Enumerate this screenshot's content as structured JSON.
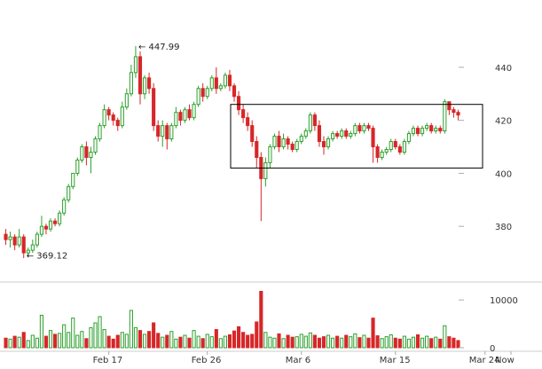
{
  "chart_data": {
    "type": "candlestick",
    "title": "",
    "price_axis": {
      "ticks": [
        380,
        400,
        420,
        440
      ],
      "tick_labels": [
        "380",
        "400",
        "420",
        "440"
      ],
      "ylim": [
        365,
        452
      ]
    },
    "volume_axis": {
      "ticks": [
        0,
        10000
      ],
      "tick_labels": [
        "0",
        "10000"
      ],
      "ylim": [
        0,
        13000
      ]
    },
    "x_labels": [
      "Feb 17",
      "Feb 26",
      "Mar 6",
      "Mar 15",
      "Mar 24",
      "Now"
    ],
    "annotations": {
      "high_label": "← 447.99",
      "low_label": "← 369.12",
      "high_value": 447.99,
      "low_value": 369.12
    },
    "highlight_box": {
      "price_range": [
        402,
        426
      ]
    },
    "colors": {
      "up": "#2ca02c",
      "down": "#d62728",
      "axis": "#cccccc",
      "box": "#000000"
    },
    "candles": [
      [
        377,
        375,
        379,
        373,
        2000
      ],
      [
        375,
        376,
        378,
        372,
        1800
      ],
      [
        376,
        373,
        377,
        371,
        2400
      ],
      [
        373,
        376,
        379,
        372,
        2200
      ],
      [
        376,
        370,
        377,
        368,
        3200
      ],
      [
        370,
        371,
        372,
        369,
        1500
      ],
      [
        371,
        373,
        375,
        370,
        2600
      ],
      [
        373,
        377,
        378,
        372,
        2000
      ],
      [
        377,
        380,
        384,
        376,
        6800
      ],
      [
        380,
        379,
        381,
        377,
        2400
      ],
      [
        379,
        382,
        383,
        378,
        3600
      ],
      [
        382,
        381,
        383,
        380,
        2800
      ],
      [
        381,
        385,
        386,
        380,
        3000
      ],
      [
        385,
        390,
        391,
        384,
        4800
      ],
      [
        390,
        395,
        396,
        389,
        3200
      ],
      [
        395,
        400,
        398,
        394,
        6200
      ],
      [
        400,
        405,
        406,
        399,
        2600
      ],
      [
        405,
        410,
        411,
        404,
        3400
      ],
      [
        410,
        406,
        412,
        403,
        1900
      ],
      [
        406,
        408,
        410,
        400,
        4200
      ],
      [
        408,
        413,
        414,
        407,
        5200
      ],
      [
        413,
        418,
        419,
        412,
        6500
      ],
      [
        418,
        424,
        426,
        417,
        3800
      ],
      [
        424,
        422,
        425,
        420,
        2400
      ],
      [
        422,
        420,
        423,
        418,
        1800
      ],
      [
        420,
        418,
        421,
        416,
        2600
      ],
      [
        418,
        425,
        427,
        417,
        3200
      ],
      [
        425,
        430,
        432,
        424,
        2800
      ],
      [
        430,
        438,
        441,
        429,
        7800
      ],
      [
        438,
        444,
        448,
        436,
        4200
      ],
      [
        444,
        430,
        446,
        426,
        3600
      ],
      [
        430,
        436,
        437,
        428,
        2800
      ],
      [
        436,
        432,
        438,
        430,
        3400
      ],
      [
        432,
        418,
        434,
        416,
        5200
      ],
      [
        418,
        414,
        420,
        412,
        3000
      ],
      [
        414,
        418,
        420,
        410,
        2200
      ],
      [
        418,
        413,
        419,
        409,
        2600
      ],
      [
        413,
        418,
        419,
        412,
        3400
      ],
      [
        418,
        423,
        425,
        417,
        1800
      ],
      [
        423,
        420,
        424,
        418,
        2200
      ],
      [
        420,
        424,
        425,
        419,
        2600
      ],
      [
        424,
        421,
        426,
        420,
        2000
      ],
      [
        421,
        426,
        427,
        420,
        3600
      ],
      [
        426,
        432,
        433,
        425,
        2400
      ],
      [
        432,
        429,
        434,
        427,
        1900
      ],
      [
        429,
        432,
        433,
        428,
        2800
      ],
      [
        432,
        436,
        437,
        431,
        2300
      ],
      [
        436,
        432,
        440,
        430,
        3800
      ],
      [
        432,
        433,
        434,
        431,
        1900
      ],
      [
        433,
        437,
        438,
        432,
        2400
      ],
      [
        437,
        433,
        439,
        431,
        2700
      ],
      [
        433,
        429,
        434,
        427,
        3500
      ],
      [
        429,
        424,
        431,
        422,
        4400
      ],
      [
        424,
        421,
        426,
        419,
        3200
      ],
      [
        421,
        418,
        423,
        416,
        2600
      ],
      [
        418,
        412,
        420,
        410,
        2800
      ],
      [
        412,
        406,
        414,
        402,
        5400
      ],
      [
        406,
        398,
        408,
        382,
        11800
      ],
      [
        398,
        404,
        406,
        395,
        3200
      ],
      [
        404,
        410,
        411,
        402,
        2200
      ],
      [
        410,
        414,
        415,
        409,
        2000
      ],
      [
        414,
        410,
        416,
        408,
        2900
      ],
      [
        410,
        413,
        415,
        409,
        1900
      ],
      [
        413,
        411,
        414,
        409,
        2600
      ],
      [
        411,
        409,
        412,
        408,
        2200
      ],
      [
        409,
        412,
        413,
        408,
        2300
      ],
      [
        412,
        414,
        415,
        411,
        2800
      ],
      [
        414,
        416,
        417,
        413,
        2400
      ],
      [
        416,
        422,
        423,
        415,
        3100
      ],
      [
        422,
        418,
        423,
        416,
        2600
      ],
      [
        418,
        412,
        420,
        410,
        2000
      ],
      [
        412,
        410,
        414,
        407,
        2300
      ],
      [
        410,
        413,
        414,
        409,
        2600
      ],
      [
        413,
        415,
        416,
        412,
        2000
      ],
      [
        415,
        414,
        416,
        413,
        2400
      ],
      [
        414,
        416,
        417,
        413,
        2000
      ],
      [
        416,
        414,
        417,
        413,
        2600
      ],
      [
        414,
        415,
        416,
        413,
        2300
      ],
      [
        415,
        418,
        419,
        414,
        2900
      ],
      [
        418,
        416,
        419,
        415,
        2100
      ],
      [
        416,
        418,
        419,
        415,
        2600
      ],
      [
        418,
        417,
        419,
        416,
        2000
      ],
      [
        417,
        410,
        418,
        404,
        6200
      ],
      [
        410,
        406,
        411,
        404,
        2500
      ],
      [
        406,
        408,
        409,
        405,
        1900
      ],
      [
        408,
        409,
        410,
        407,
        2300
      ],
      [
        409,
        412,
        413,
        408,
        2700
      ],
      [
        412,
        410,
        413,
        409,
        2000
      ],
      [
        410,
        408,
        411,
        407,
        1800
      ],
      [
        408,
        412,
        413,
        407,
        2400
      ],
      [
        412,
        415,
        416,
        411,
        1800
      ],
      [
        415,
        417,
        418,
        414,
        2200
      ],
      [
        417,
        415,
        418,
        414,
        2700
      ],
      [
        415,
        417,
        418,
        414,
        2000
      ],
      [
        417,
        418,
        419,
        416,
        2400
      ],
      [
        418,
        416,
        419,
        415,
        1900
      ],
      [
        416,
        417,
        418,
        415,
        2200
      ],
      [
        417,
        416,
        418,
        415,
        1800
      ],
      [
        416,
        427,
        428,
        415,
        4600
      ],
      [
        427,
        424,
        426,
        422,
        2300
      ],
      [
        424,
        423,
        425,
        421,
        2000
      ],
      [
        423,
        422,
        424,
        420,
        1500
      ]
    ]
  }
}
